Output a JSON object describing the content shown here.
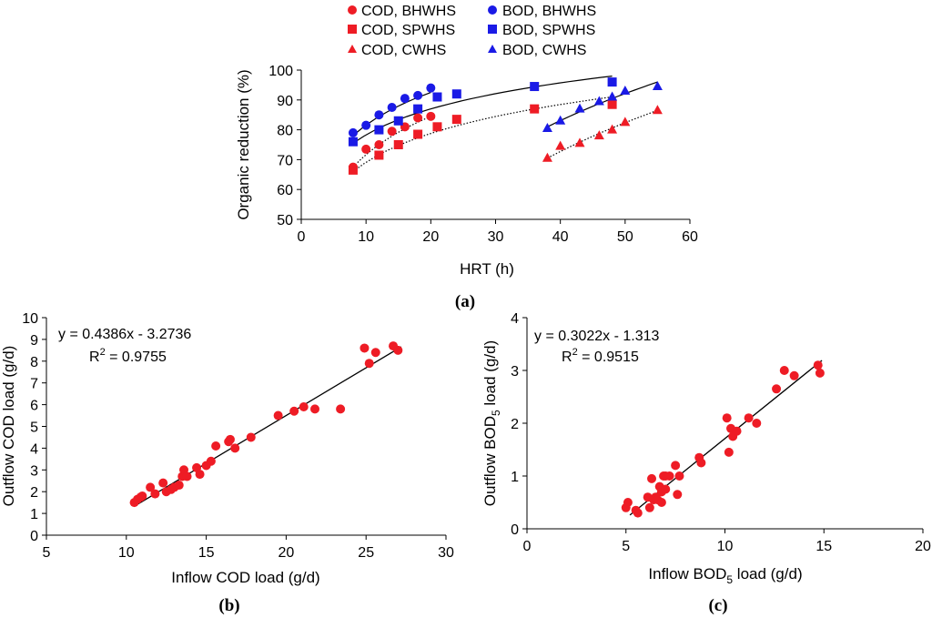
{
  "colors": {
    "red": "#ee1c25",
    "blue": "#1a1ae6",
    "axis": "#000000"
  },
  "chart_data": [
    {
      "type": "scatter",
      "panel_label": "(a)",
      "xlabel": "HRT (h)",
      "ylabel": "Organic reduction  (%)",
      "xlim": [
        0,
        60
      ],
      "ylim": [
        50,
        100
      ],
      "xticks": [
        "0",
        "10",
        "20",
        "30",
        "40",
        "50",
        "60"
      ],
      "yticks": [
        "50",
        "60",
        "70",
        "80",
        "90",
        "100"
      ],
      "legend_position": "top",
      "series": [
        {
          "name": "COD, BHWHS",
          "marker": "circle",
          "color": "red",
          "x": [
            8,
            10,
            12,
            14,
            16,
            18,
            20
          ],
          "y": [
            67.5,
            73.5,
            75,
            79.5,
            81,
            84,
            84.5
          ],
          "trend": {
            "style": "dotted",
            "x": [
              8,
              20
            ],
            "y": [
              67.5,
              84.5
            ]
          }
        },
        {
          "name": "BOD, BHWHS",
          "marker": "circle",
          "color": "blue",
          "x": [
            8,
            10,
            12,
            14,
            16,
            18,
            20
          ],
          "y": [
            79,
            81.5,
            85,
            87.5,
            90.5,
            91.5,
            94
          ],
          "trend": {
            "style": "solid",
            "x": [
              8,
              20
            ],
            "y": [
              78,
              92.5
            ]
          }
        },
        {
          "name": "COD, SPWHS",
          "marker": "square",
          "color": "red",
          "x": [
            8,
            12,
            15,
            18,
            21,
            24,
            36,
            48
          ],
          "y": [
            66.5,
            71.5,
            75,
            78.5,
            81,
            83.5,
            87,
            88.5
          ],
          "trend": {
            "style": "dotted",
            "x": [
              8,
              48
            ],
            "y": [
              66,
              91
            ]
          }
        },
        {
          "name": "BOD, SPWHS",
          "marker": "square",
          "color": "blue",
          "x": [
            8,
            12,
            15,
            18,
            21,
            24,
            36,
            48
          ],
          "y": [
            76,
            80,
            83,
            87,
            91,
            92,
            94.5,
            96
          ],
          "trend": {
            "style": "solid",
            "x": [
              8,
              48
            ],
            "y": [
              75.5,
              98
            ]
          }
        },
        {
          "name": "COD, CWHS",
          "marker": "triangle",
          "color": "red",
          "x": [
            38,
            40,
            43,
            46,
            48,
            50,
            55
          ],
          "y": [
            70.5,
            74.5,
            75.5,
            78,
            80,
            82.5,
            86.5
          ],
          "trend": {
            "style": "dotted",
            "x": [
              38,
              55
            ],
            "y": [
              70.5,
              86.5
            ]
          }
        },
        {
          "name": "BOD, CWHS",
          "marker": "triangle",
          "color": "blue",
          "x": [
            38,
            40,
            43,
            46,
            48,
            50,
            55
          ],
          "y": [
            80.5,
            83,
            87,
            89.5,
            91,
            93,
            94.5
          ],
          "trend": {
            "style": "solid",
            "x": [
              38,
              55
            ],
            "y": [
              81,
              96
            ]
          }
        }
      ]
    },
    {
      "type": "scatter",
      "panel_label": "(b)",
      "xlabel": "Inflow COD load (g/d)",
      "ylabel": "Outflow COD load (g/d)",
      "xlim": [
        5,
        30
      ],
      "ylim": [
        0,
        10
      ],
      "xticks": [
        "5",
        "10",
        "15",
        "20",
        "25",
        "30"
      ],
      "yticks": [
        "0",
        "1",
        "2",
        "3",
        "4",
        "5",
        "6",
        "7",
        "8",
        "9",
        "10"
      ],
      "equation": "y = 0.4386x - 3.2736",
      "r2_label": "R",
      "r2_sup": "2",
      "r2_value": " = 0.9755",
      "fit_line": {
        "x": [
          10.5,
          27.2
        ],
        "y": [
          1.33,
          8.66
        ]
      },
      "points": {
        "x": [
          10.5,
          10.7,
          10.9,
          11.0,
          11.5,
          11.8,
          12.3,
          12.5,
          12.8,
          13.0,
          13.3,
          13.5,
          13.6,
          13.8,
          14.4,
          14.6,
          15.0,
          15.3,
          15.6,
          16.4,
          16.5,
          16.8,
          17.8,
          19.5,
          20.5,
          21.1,
          21.8,
          23.4,
          24.9,
          25.2,
          25.6,
          26.7,
          27.0
        ],
        "y": [
          1.5,
          1.65,
          1.75,
          1.8,
          2.2,
          1.9,
          2.4,
          2.0,
          2.1,
          2.2,
          2.3,
          2.7,
          3.0,
          2.7,
          3.1,
          2.8,
          3.2,
          3.4,
          4.1,
          4.3,
          4.4,
          4.0,
          4.5,
          5.5,
          5.7,
          5.9,
          5.8,
          5.8,
          8.6,
          7.9,
          8.4,
          8.7,
          8.5
        ]
      }
    },
    {
      "type": "scatter",
      "panel_label": "(c)",
      "xlabel_main": "Inflow BOD",
      "xlabel_sub": "5",
      "xlabel_tail": " load (g/d)",
      "ylabel_main": "Outflow BOD",
      "ylabel_sub": "5",
      "ylabel_tail": " load (g/d)",
      "xlim": [
        0,
        20
      ],
      "ylim": [
        0,
        4
      ],
      "xticks": [
        "0",
        "5",
        "10",
        "15",
        "20"
      ],
      "yticks": [
        "0",
        "1",
        "2",
        "3",
        "4"
      ],
      "equation": "y = 0.3022x - 1.313",
      "r2_label": "R",
      "r2_sup": "2",
      "r2_value": " = 0.9515",
      "fit_line": {
        "x": [
          5.2,
          14.9
        ],
        "y": [
          0.26,
          3.19
        ]
      },
      "points": {
        "x": [
          5.0,
          5.1,
          5.5,
          5.6,
          6.1,
          6.2,
          6.3,
          6.4,
          6.5,
          6.6,
          6.7,
          6.8,
          6.8,
          6.9,
          7.0,
          7.0,
          7.2,
          7.5,
          7.6,
          7.7,
          8.7,
          8.8,
          10.1,
          10.2,
          10.3,
          10.4,
          10.6,
          11.2,
          11.6,
          12.6,
          13.0,
          13.5,
          14.7,
          14.8
        ],
        "y": [
          0.4,
          0.5,
          0.35,
          0.3,
          0.6,
          0.4,
          0.95,
          0.55,
          0.6,
          0.55,
          0.8,
          0.7,
          0.5,
          1.0,
          0.75,
          1.0,
          1.0,
          1.2,
          0.65,
          1.0,
          1.35,
          1.25,
          2.1,
          1.45,
          1.9,
          1.75,
          1.85,
          2.1,
          2.0,
          2.65,
          3.0,
          2.9,
          3.1,
          2.95
        ]
      }
    }
  ]
}
